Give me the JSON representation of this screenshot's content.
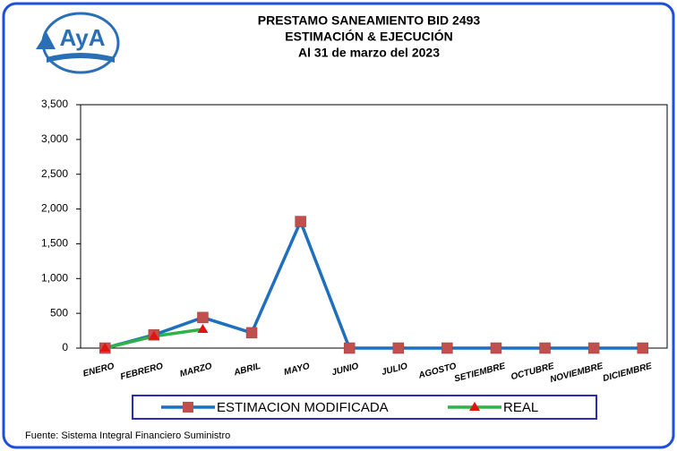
{
  "logo_text": "AyA",
  "chart_data": {
    "type": "line",
    "title_lines": [
      "PRESTAMO SANEAMIENTO  BID 2493",
      "ESTIMACIÓN & EJECUCIÓN",
      "Al 31 de marzo del 2023"
    ],
    "categories": [
      "ENERO",
      "FEBRERO",
      "MARZO",
      "ABRIL",
      "MAYO",
      "JUNIO",
      "JULIO",
      "AGOSTO",
      "SETIEMBRE",
      "OCTUBRE",
      "NOVIEMBRE",
      "DICIEMBRE"
    ],
    "series": [
      {
        "name": "ESTIMACION MODIFICADA",
        "color": "#1f6fbf",
        "marker": "square",
        "marker_color": "#c0504d",
        "values": [
          0,
          190,
          440,
          220,
          1820,
          0,
          0,
          0,
          0,
          0,
          0,
          0
        ]
      },
      {
        "name": "REAL",
        "color": "#2db34a",
        "marker": "triangle",
        "marker_color": "#e3140f",
        "values": [
          0,
          170,
          270,
          null,
          null,
          null,
          null,
          null,
          null,
          null,
          null,
          null
        ]
      }
    ],
    "ylim": [
      0,
      3500
    ],
    "yticks": [
      0,
      500,
      {
        "value": 1000,
        "label": "1,000"
      },
      {
        "value": 1500,
        "label": "1,500"
      },
      {
        "value": 2000,
        "label": "2,000"
      },
      {
        "value": 2500,
        "label": "2,500"
      },
      {
        "value": 3000,
        "label": "3,000"
      },
      {
        "value": 3500,
        "label": "3,500"
      }
    ],
    "grid": false,
    "legend": "bottom",
    "source": "Fuente: Sistema Integral Financiero Suministro"
  }
}
